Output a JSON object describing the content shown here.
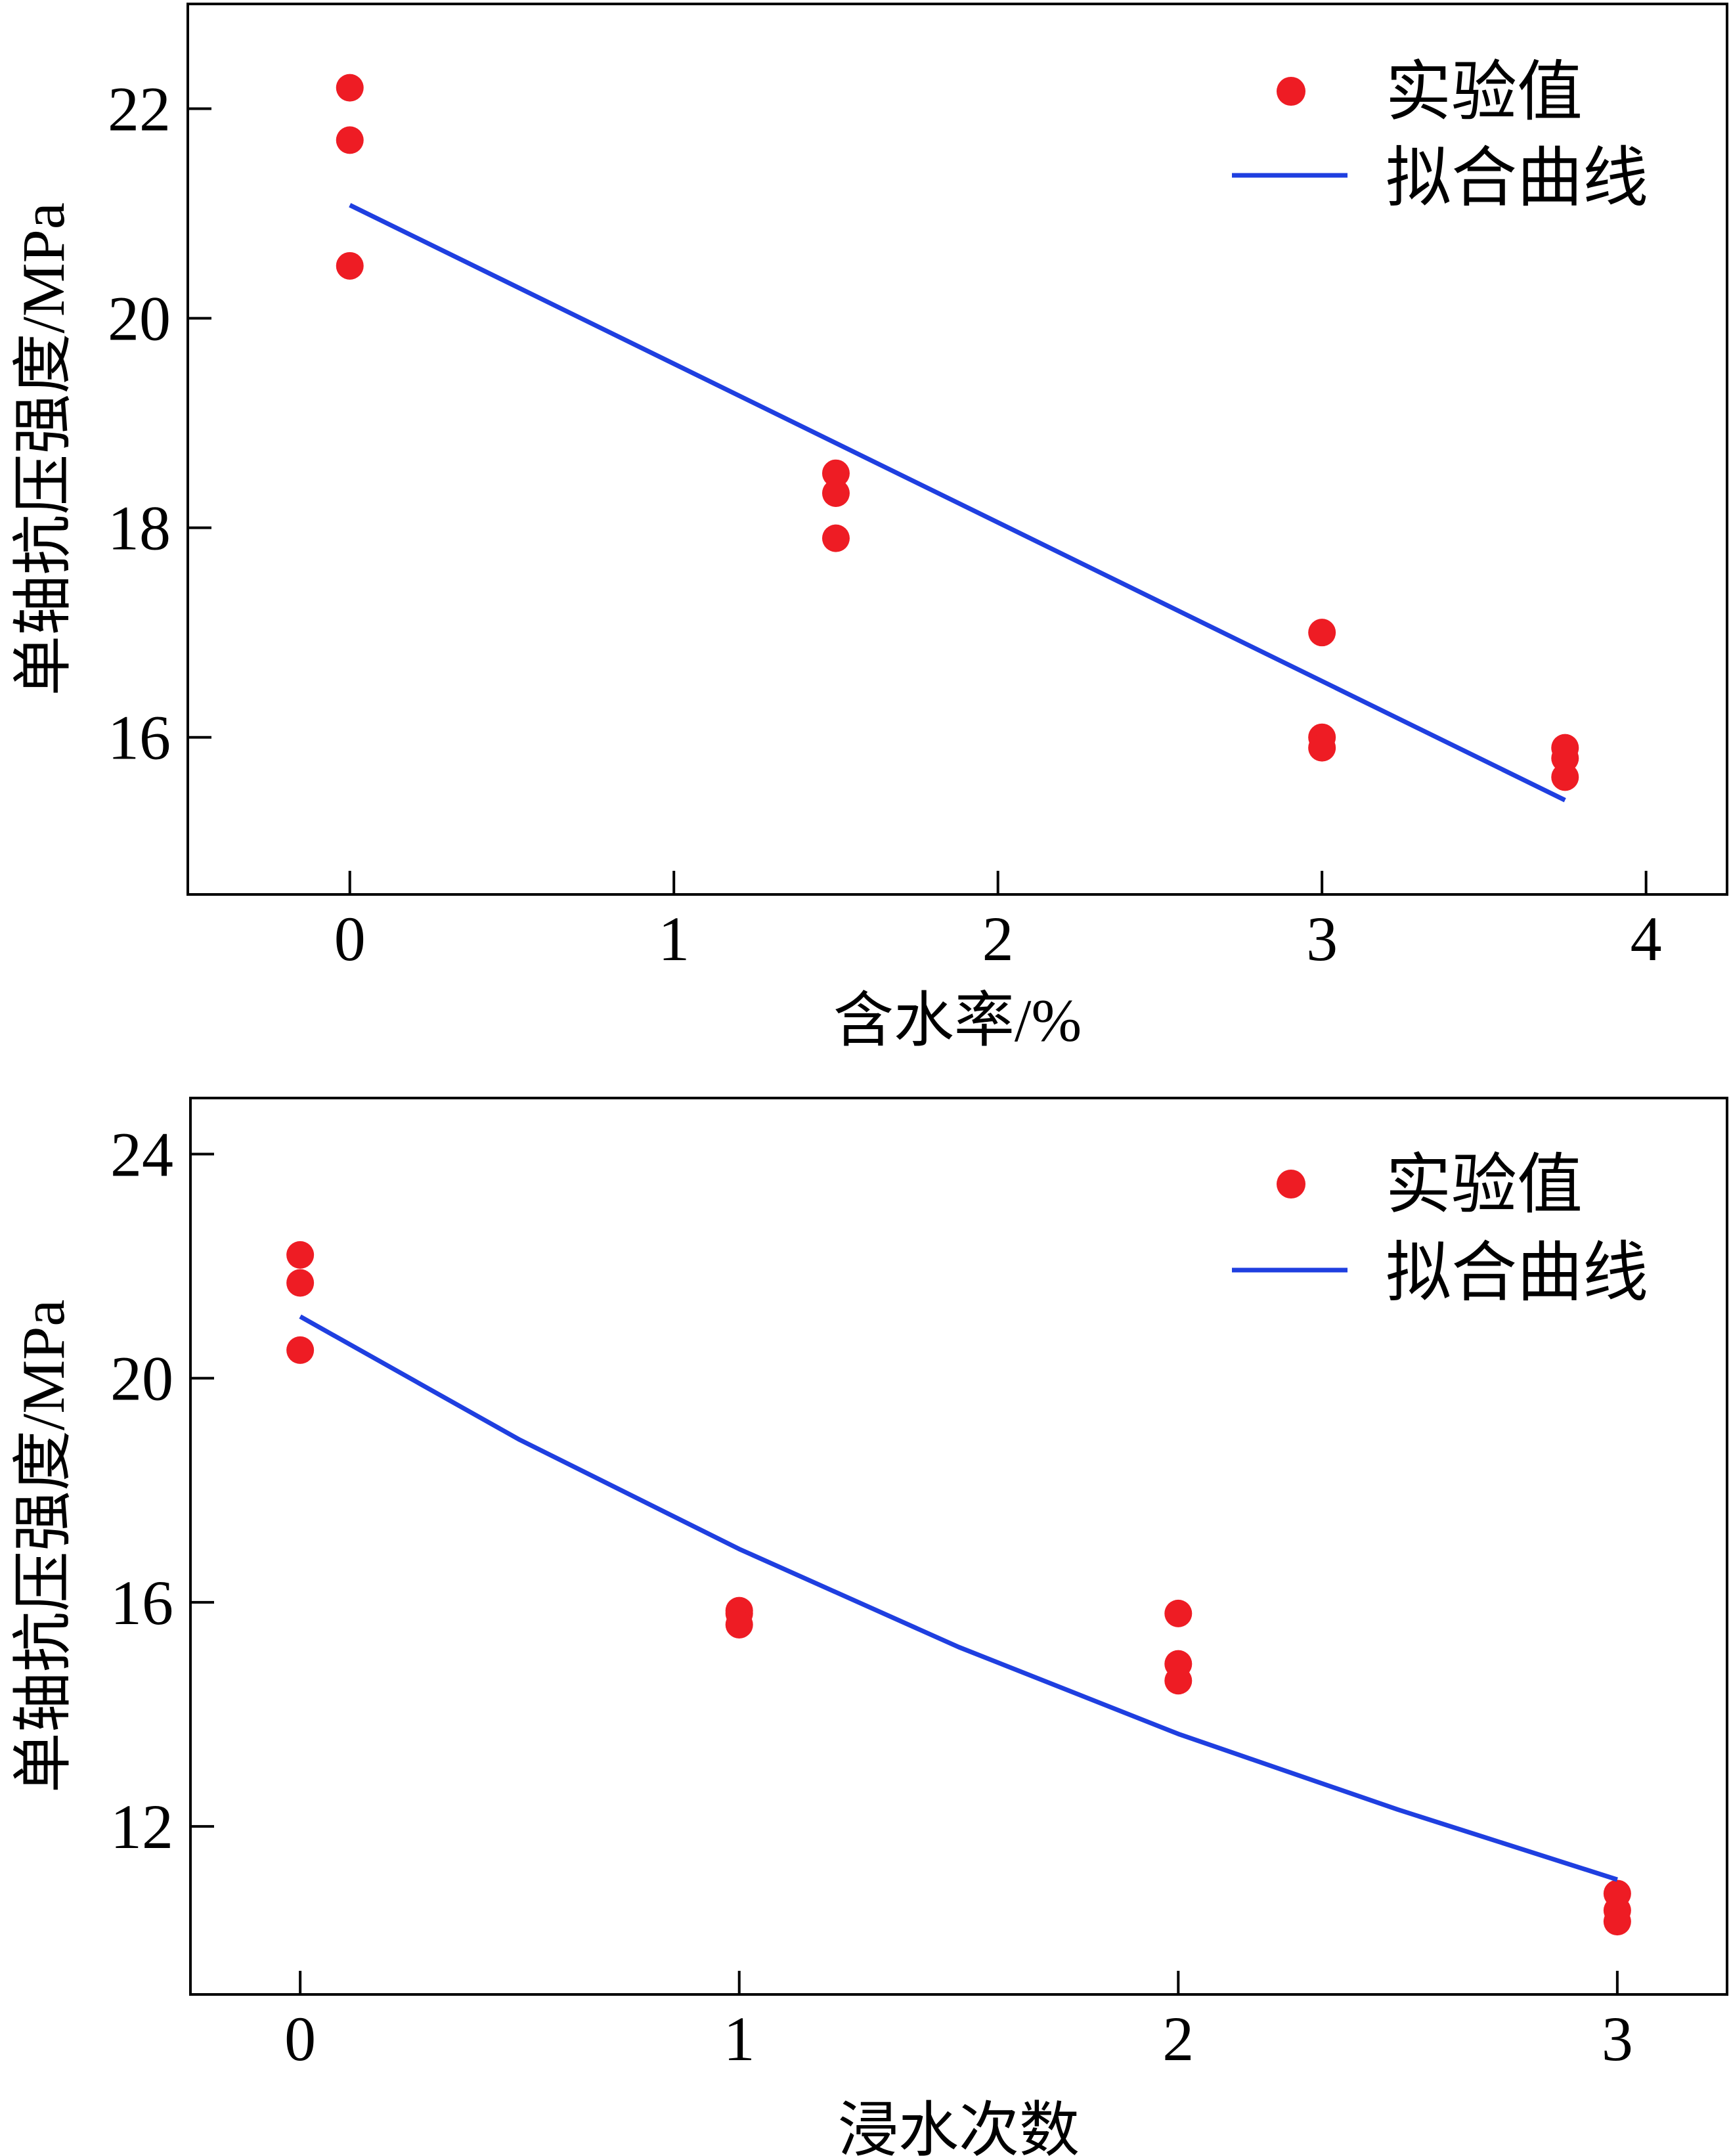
{
  "chart_data": [
    {
      "type": "scatter",
      "xlabel": "含水率/%",
      "ylabel": "单轴抗压强度/MPa",
      "xlim": [
        -0.5,
        4.25
      ],
      "ylim": [
        14.5,
        23.0
      ],
      "xticks": [
        0,
        1,
        2,
        3,
        4
      ],
      "yticks": [
        16,
        18,
        20,
        22
      ],
      "legend_position": "top-right",
      "series": [
        {
          "name": "实验值",
          "kind": "points",
          "color": "#ee1c24",
          "x": [
            0,
            0,
            0,
            1.5,
            1.5,
            1.5,
            3,
            3,
            3,
            3.75,
            3.75,
            3.75
          ],
          "y": [
            22.2,
            21.7,
            20.5,
            18.52,
            18.33,
            17.9,
            17.0,
            16.0,
            15.9,
            15.9,
            15.8,
            15.62
          ]
        },
        {
          "name": "拟合曲线",
          "kind": "line",
          "color": "#1f3fe0",
          "x": [
            0,
            3.75
          ],
          "y": [
            21.08,
            15.4
          ]
        }
      ]
    },
    {
      "type": "scatter",
      "xlabel": "浸水次数",
      "ylabel": "单轴抗压强度/MPa",
      "xlim": [
        -0.25,
        3.25
      ],
      "ylim": [
        9.0,
        25.0
      ],
      "xticks": [
        0,
        1,
        2,
        3
      ],
      "yticks": [
        12,
        16,
        20,
        24
      ],
      "legend_position": "top-right",
      "series": [
        {
          "name": "实验值",
          "kind": "points",
          "color": "#ee1c24",
          "x": [
            0,
            0,
            0,
            1,
            1,
            1,
            2,
            2,
            2,
            3,
            3,
            3
          ],
          "y": [
            22.2,
            21.7,
            20.5,
            15.85,
            15.8,
            15.6,
            15.8,
            14.9,
            14.6,
            10.8,
            10.5,
            10.3
          ]
        },
        {
          "name": "拟合曲线",
          "kind": "line",
          "color": "#1f3fe0",
          "x": [
            0,
            0.5,
            1,
            1.5,
            2,
            2.5,
            3
          ],
          "y": [
            21.1,
            18.9,
            16.95,
            15.2,
            13.65,
            12.3,
            11.05
          ]
        }
      ]
    }
  ]
}
